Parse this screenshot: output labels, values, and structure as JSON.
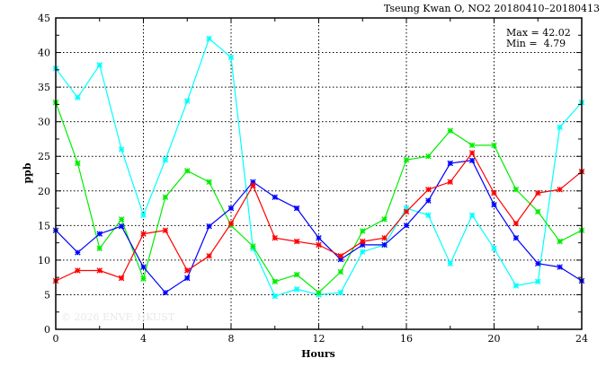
{
  "chart_data": {
    "type": "line",
    "title": "Tseung Kwan O, NO2 20180410–20180413",
    "xlabel": "Hours",
    "ylabel": "ppb",
    "xlim": [
      0,
      24
    ],
    "ylim": [
      0,
      45
    ],
    "x_ticks": [
      "0",
      "4",
      "8",
      "12",
      "16",
      "20",
      "24"
    ],
    "y_ticks": [
      "0",
      "5",
      "10",
      "15",
      "20",
      "25",
      "30",
      "35",
      "40",
      "45"
    ],
    "grid": true,
    "stats": {
      "max_label": "Max = 42.02",
      "min_label": "Min =  4.79"
    },
    "watermark": "© 2026  ENVF, HKUST",
    "x": [
      0,
      1,
      2,
      3,
      4,
      5,
      6,
      7,
      8,
      9,
      10,
      11,
      12,
      13,
      14,
      15,
      16,
      17,
      18,
      19,
      20,
      21,
      22,
      23,
      24
    ],
    "series": [
      {
        "name": "cyan",
        "color": "#00ffff",
        "values": [
          37.7,
          33.5,
          38.2,
          26.0,
          16.5,
          24.5,
          33.0,
          42.02,
          39.3,
          11.7,
          4.79,
          5.8,
          5.0,
          5.3,
          11.2,
          12.2,
          17.5,
          16.5,
          9.5,
          16.5,
          11.7,
          6.3,
          6.9,
          29.2,
          32.8
        ]
      },
      {
        "name": "green",
        "color": "#00ee00",
        "values": [
          32.8,
          24.0,
          11.7,
          15.9,
          7.3,
          19.1,
          22.9,
          21.3,
          15.0,
          12.0,
          6.9,
          7.9,
          5.3,
          8.3,
          14.2,
          15.9,
          24.5,
          25.0,
          28.7,
          26.6,
          26.6,
          20.2,
          17.0,
          12.7,
          14.3
        ]
      },
      {
        "name": "blue",
        "color": "#0000ff",
        "values": [
          14.3,
          11.1,
          13.8,
          14.9,
          9.0,
          5.3,
          7.4,
          14.9,
          17.5,
          21.3,
          19.1,
          17.5,
          13.2,
          10.1,
          12.2,
          12.2,
          15.0,
          18.6,
          24.0,
          24.4,
          18.0,
          13.2,
          9.5,
          9.0,
          7.0
        ]
      },
      {
        "name": "red",
        "color": "#ff0000",
        "values": [
          7.0,
          8.5,
          8.5,
          7.4,
          13.8,
          14.3,
          8.5,
          10.6,
          15.3,
          20.8,
          13.2,
          12.7,
          12.2,
          10.6,
          12.7,
          13.2,
          17.0,
          20.2,
          21.3,
          25.5,
          19.7,
          15.3,
          19.7,
          20.2,
          22.8
        ]
      }
    ]
  }
}
